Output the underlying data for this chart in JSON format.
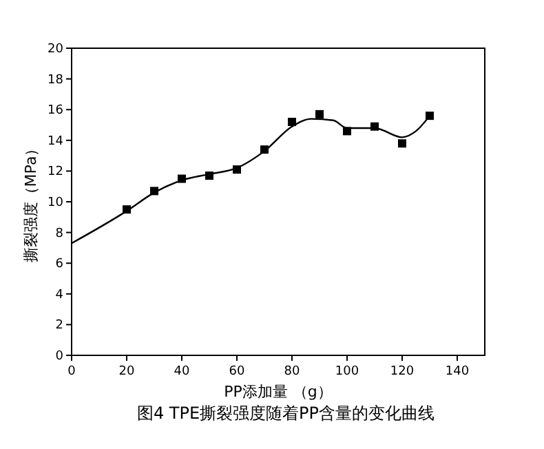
{
  "chart_data": {
    "type": "scatter",
    "title": "图4 TPE撕裂强度随着PP含量的变化曲线",
    "xlabel": "PP添加量 （g）",
    "ylabel": "撕裂强度（MPa）",
    "xlim": [
      0,
      150
    ],
    "xticks": [
      0,
      20,
      40,
      60,
      80,
      100,
      120,
      140
    ],
    "ylim": [
      0,
      20
    ],
    "yticks": [
      0,
      2,
      4,
      6,
      8,
      10,
      12,
      14,
      16,
      18,
      20
    ],
    "grid": false,
    "series": [
      {
        "color": "#000000",
        "marker": "square",
        "x": [
          20,
          30,
          40,
          50,
          60,
          70,
          80,
          90,
          100,
          110,
          120,
          130
        ],
        "values": [
          9.5,
          10.7,
          11.5,
          11.7,
          12.1,
          13.4,
          15.2,
          15.7,
          14.6,
          14.9,
          13.8,
          15.6
        ]
      },
      {
        "type": "line",
        "color": "#000000",
        "marker": "none",
        "line_style": "solid",
        "x": [
          0,
          20,
          30,
          40,
          50,
          60,
          70,
          80,
          87,
          95,
          100,
          110,
          120,
          125,
          130
        ],
        "values": [
          7.3,
          9.4,
          10.6,
          11.4,
          11.8,
          12.2,
          13.3,
          14.9,
          15.4,
          15.3,
          14.8,
          14.8,
          14.2,
          14.6,
          15.6
        ]
      }
    ]
  }
}
